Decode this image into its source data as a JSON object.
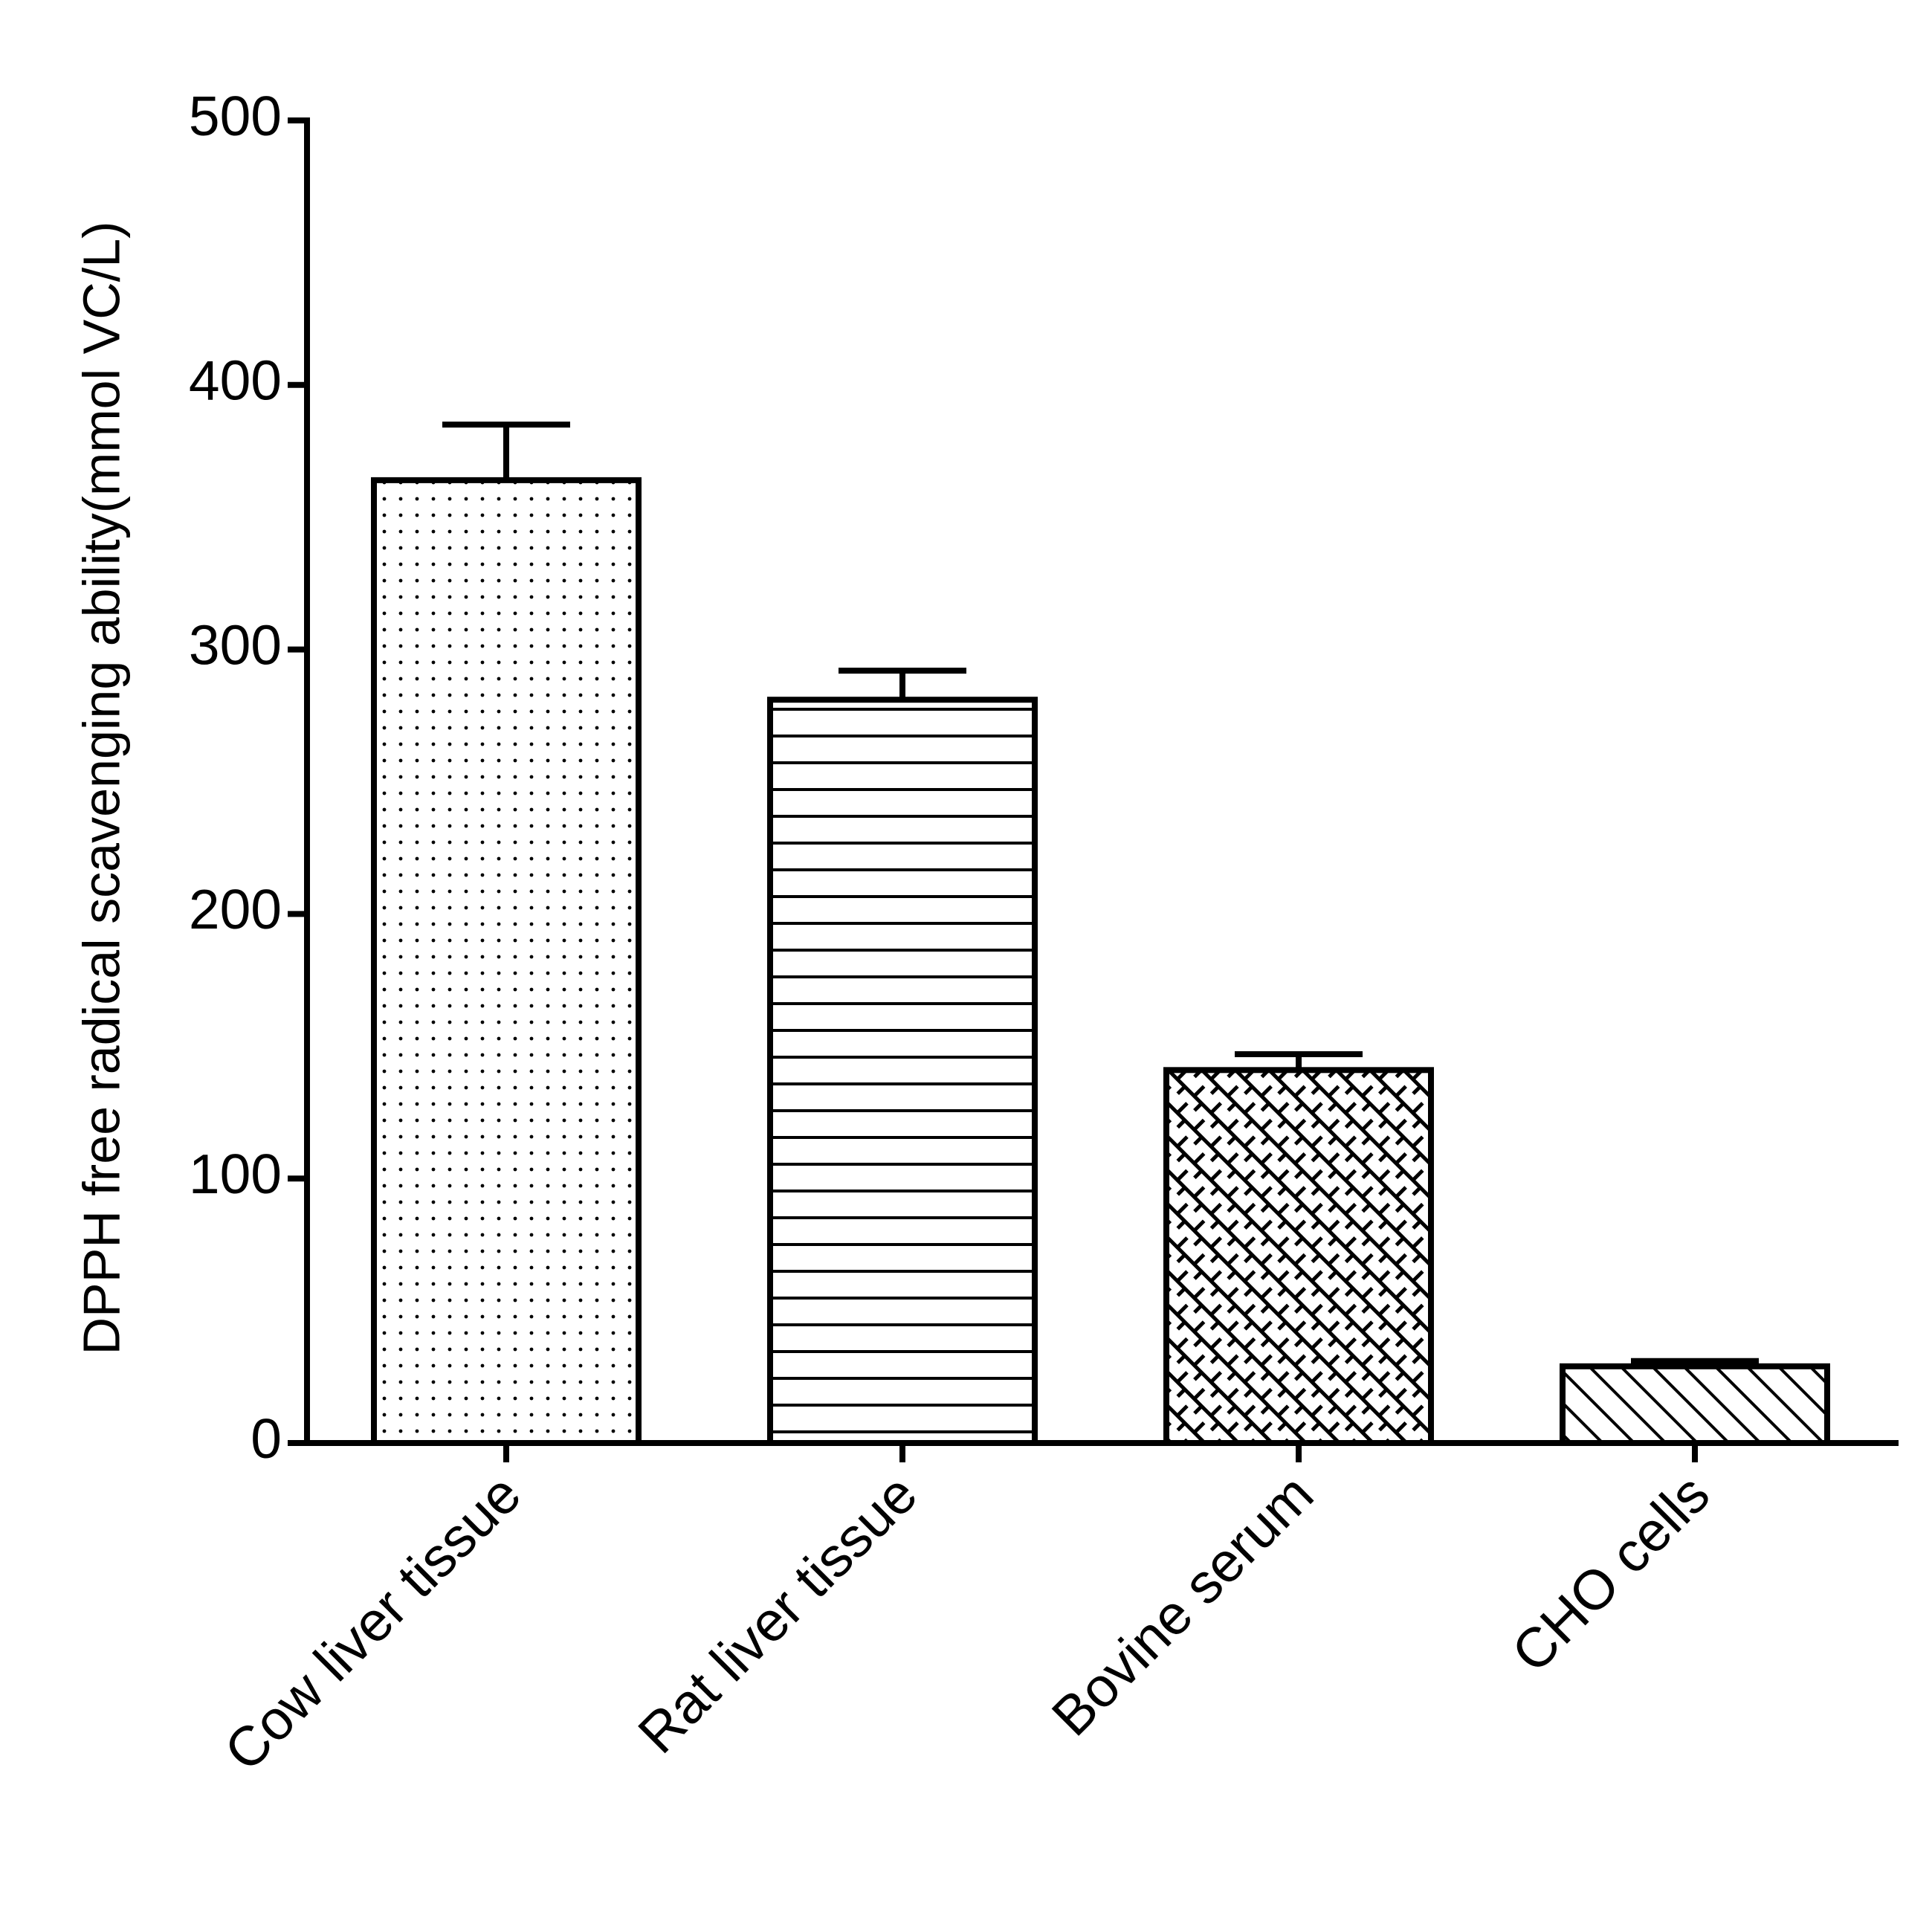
{
  "chart_data": {
    "type": "bar",
    "y_label": "DPPH free radical scavenging ability(mmol VC/L)",
    "categories": [
      "Cow liver tissue",
      "Rat liver tissue",
      "Bovine serum",
      "CHO cells"
    ],
    "values": [
      364,
      281,
      141,
      29
    ],
    "errors": [
      21,
      11,
      6,
      2
    ],
    "patterns": [
      "dots",
      "horizontal",
      "crosshatch",
      "diagonal"
    ],
    "color": "#000000",
    "ylim": [
      0,
      500
    ],
    "yticks": [
      0,
      100,
      200,
      300,
      400,
      500
    ]
  }
}
